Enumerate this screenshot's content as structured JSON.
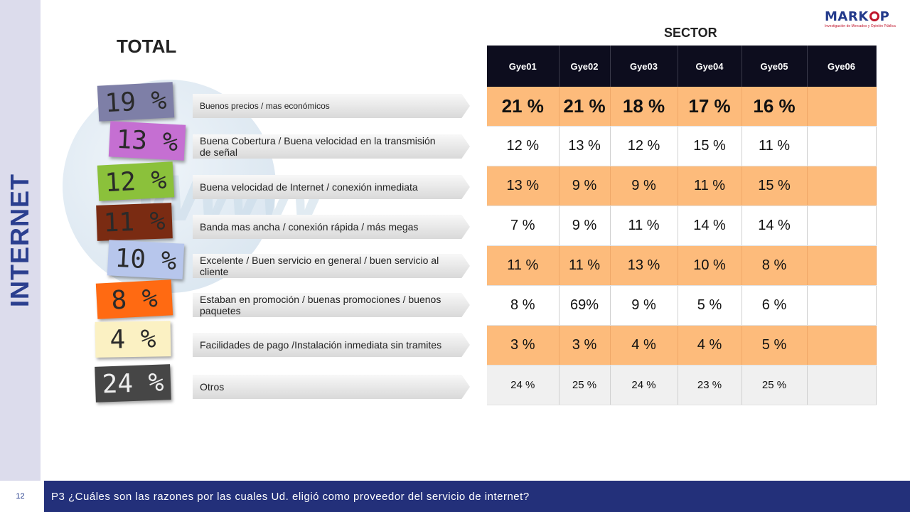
{
  "sidebar": {
    "title": "INTERNET"
  },
  "logo": {
    "name": "MARKOP",
    "subtitle": "Investigación de Mercados y Opinión Pública"
  },
  "total": {
    "title": "TOTAL"
  },
  "background": {
    "text": "www"
  },
  "items": [
    {
      "total": "19 %",
      "label": "Buenos precios / mas económicos",
      "color": "#7e7fa7"
    },
    {
      "total": "13 %",
      "label": "Buena Cobertura / Buena velocidad en la transmisión de señal",
      "color": "#c56fd2"
    },
    {
      "total": "12 %",
      "label": "Buena velocidad de Internet / conexión inmediata",
      "color": "#8bc13b"
    },
    {
      "total": "11 %",
      "label": "Banda mas ancha / conexión rápida / más megas",
      "color": "#7a2b12"
    },
    {
      "total": "10 %",
      "label": "Excelente / Buen servicio en general / buen servicio al cliente",
      "color": "#b7c6ec"
    },
    {
      "total": "8 %",
      "label": "Estaban en promoción / buenas promociones / buenos paquetes",
      "color": "#ff6a12"
    },
    {
      "total": "4 %",
      "label": "Facilidades de pago /Instalación inmediata sin tramites",
      "color": "#fbf1c3"
    },
    {
      "total": "24 %",
      "label": "Otros",
      "color": "#464646"
    }
  ],
  "sector": {
    "title": "SECTOR",
    "columns": [
      "Gye01",
      "Gye02",
      "Gye03",
      "Gye04",
      "Gye05",
      "Gye06"
    ],
    "rows": [
      [
        "21 %",
        "21 %",
        "18 %",
        "17 %",
        "16 %",
        ""
      ],
      [
        "12 %",
        "13 %",
        "12 %",
        "15 %",
        "11 %",
        ""
      ],
      [
        "13 %",
        "9 %",
        "9 %",
        "11 %",
        "15 %",
        ""
      ],
      [
        "7 %",
        "9 %",
        "11 %",
        "14 %",
        "14 %",
        ""
      ],
      [
        "11 %",
        "11 %",
        "13 %",
        "10 %",
        "8 %",
        ""
      ],
      [
        "8 %",
        "69%",
        "9 %",
        "5 %",
        "6 %",
        ""
      ],
      [
        "3 %",
        "3 %",
        "4 %",
        "4 %",
        "5 %",
        ""
      ],
      [
        "24 %",
        "25 %",
        "24 %",
        "23 %",
        "25 %",
        ""
      ]
    ]
  },
  "footer": {
    "page_number": "12",
    "question": "P3 ¿Cuáles son las razones por las cuales Ud. eligió como proveedor del servicio de internet?"
  }
}
